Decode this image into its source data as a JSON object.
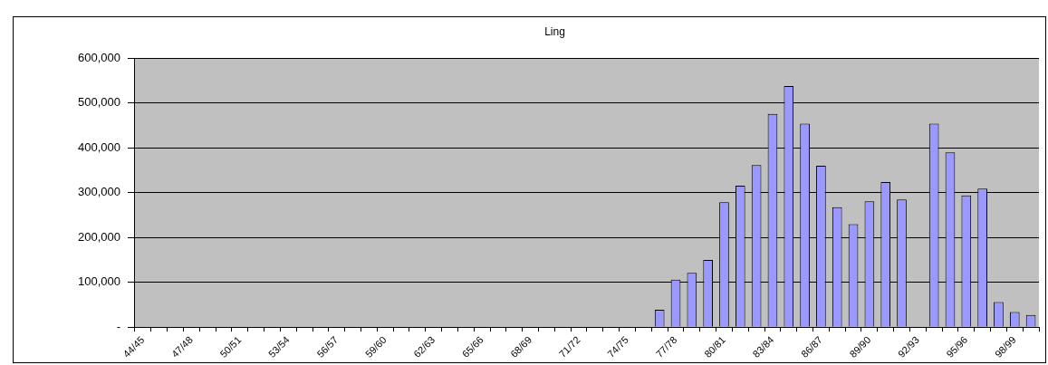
{
  "chart_data": {
    "type": "bar",
    "title": "Ling",
    "categories": [
      "44/45",
      null,
      null,
      "47/48",
      null,
      null,
      "50/51",
      null,
      null,
      "53/54",
      null,
      null,
      "56/57",
      null,
      null,
      "59/60",
      null,
      null,
      "62/63",
      null,
      null,
      "65/66",
      null,
      null,
      "68/69",
      null,
      null,
      "71/72",
      null,
      null,
      "74/75",
      null,
      null,
      "77/78",
      null,
      null,
      "80/81",
      null,
      null,
      "83/84",
      null,
      null,
      "86/87",
      null,
      null,
      "89/90",
      null,
      null,
      "92/93",
      null,
      null,
      "95/96",
      null,
      null,
      "98/99",
      null
    ],
    "values": [
      null,
      null,
      null,
      null,
      null,
      null,
      null,
      null,
      null,
      null,
      null,
      null,
      null,
      null,
      null,
      null,
      null,
      null,
      null,
      null,
      null,
      null,
      null,
      null,
      null,
      null,
      null,
      null,
      null,
      null,
      null,
      null,
      39000,
      106000,
      121000,
      150000,
      279000,
      316000,
      362000,
      476000,
      538000,
      454000,
      360000,
      268000,
      230000,
      281000,
      324000,
      285000,
      null,
      454000,
      390000,
      294000,
      309000,
      56000,
      34000,
      27000
    ],
    "color": "#9999ff",
    "ylim": [
      0,
      600000
    ],
    "yticks": [
      {
        "value": 0,
        "label": "-"
      },
      {
        "value": 100000,
        "label": "100,000"
      },
      {
        "value": 200000,
        "label": "200,000"
      },
      {
        "value": 300000,
        "label": "300,000"
      },
      {
        "value": 400000,
        "label": "400,000"
      },
      {
        "value": 500000,
        "label": "500,000"
      },
      {
        "value": 600000,
        "label": "600,000"
      }
    ],
    "grid": "y",
    "legend": false
  }
}
